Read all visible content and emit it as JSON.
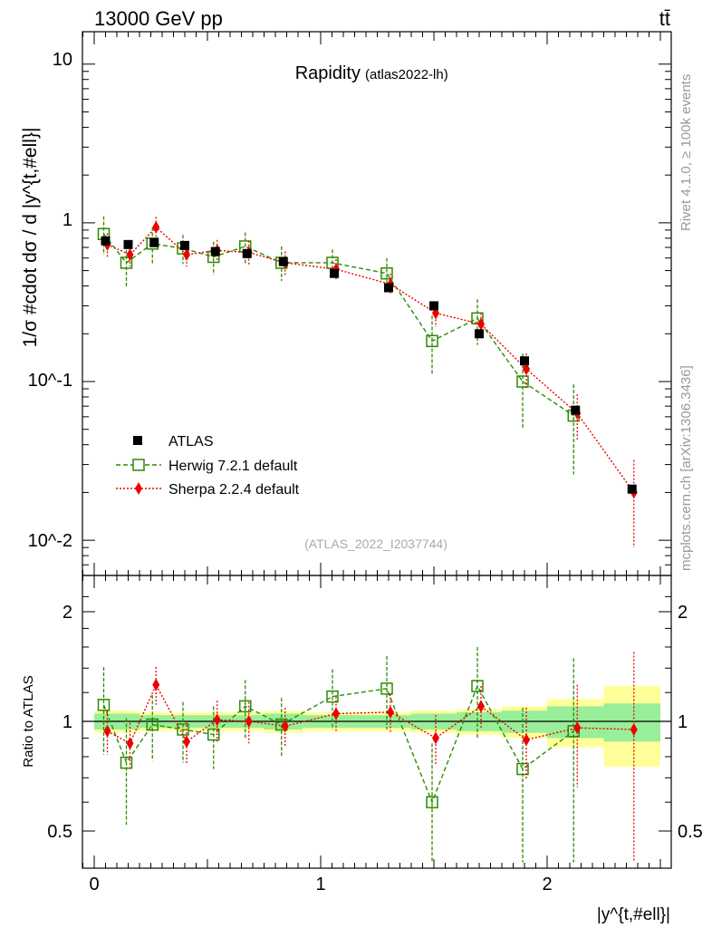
{
  "header": {
    "left": "13000 GeV pp",
    "right": "tt̄"
  },
  "side": {
    "right_top": "Rivet 4.1.0, ≥ 100k events",
    "right_bottom": "mcplots.cern.ch [arXiv:1306.3436]"
  },
  "chart_data": {
    "type": "scatter",
    "title": "Rapidity",
    "subtitle": "(atlas2022-lh)",
    "watermark": "(ATLAS_2022_I2037744)",
    "xlabel": "|y^{t,#ell}|",
    "ylabel": "1/σ #cdot dσ / d |y^{t,#ell}|",
    "ratio_ylabel": "Ratio to ATLAS",
    "xlim": [
      -0.1,
      2.55
    ],
    "ylim": [
      0.006,
      16
    ],
    "ratio_ylim": [
      0.4,
      2.5
    ],
    "yscale": "log",
    "x_ticks": [
      "0",
      "1",
      "2"
    ],
    "y_ticks": [
      "10^-2",
      "10^-1",
      "1",
      "10"
    ],
    "ratio_y_ticks": [
      "0.5",
      "1",
      "2"
    ],
    "bin_edges": [
      0,
      0.1,
      0.2,
      0.33,
      0.47,
      0.6,
      0.75,
      0.92,
      1.2,
      1.4,
      1.6,
      1.8,
      2.0,
      2.25,
      2.5
    ],
    "x": [
      0.05,
      0.15,
      0.265,
      0.4,
      0.535,
      0.675,
      0.835,
      1.06,
      1.3,
      1.5,
      1.7,
      1.9,
      2.125,
      2.375
    ],
    "legend": [
      "ATLAS",
      "Herwig 7.2.1 default",
      "Sherpa 2.2.4 default"
    ],
    "series": [
      {
        "name": "ATLAS",
        "color": "#000000",
        "values": [
          0.77,
          0.73,
          0.75,
          0.72,
          0.66,
          0.64,
          0.57,
          0.48,
          0.39,
          0.3,
          0.2,
          0.135,
          0.066,
          0.021
        ]
      },
      {
        "name": "Herwig 7.2.1 default",
        "color": "#2e8b00",
        "values": [
          0.85,
          0.56,
          0.74,
          0.69,
          0.61,
          0.71,
          0.56,
          0.56,
          0.48,
          0.18,
          0.25,
          0.1,
          0.061,
          null
        ],
        "err_up": [
          0.25,
          0.17,
          0.2,
          0.15,
          0.15,
          0.16,
          0.15,
          0.12,
          0.12,
          0.08,
          0.08,
          0.05,
          0.035,
          null
        ],
        "err_down": [
          0.22,
          0.17,
          0.2,
          0.14,
          0.14,
          0.16,
          0.13,
          0.1,
          0.1,
          0.07,
          0.08,
          0.05,
          0.035,
          null
        ]
      },
      {
        "name": "Sherpa 2.2.4 default",
        "color": "#ee0000",
        "values": [
          0.73,
          0.63,
          0.94,
          0.63,
          0.67,
          0.65,
          0.56,
          0.51,
          0.41,
          0.27,
          0.23,
          0.12,
          0.063,
          0.02
        ],
        "err_up": [
          0.13,
          0.11,
          0.15,
          0.11,
          0.11,
          0.12,
          0.1,
          0.08,
          0.07,
          0.05,
          0.04,
          0.03,
          0.02,
          0.012
        ],
        "err_down": [
          0.12,
          0.1,
          0.14,
          0.1,
          0.1,
          0.11,
          0.09,
          0.07,
          0.06,
          0.05,
          0.04,
          0.03,
          0.02,
          0.011
        ]
      }
    ],
    "ratio": {
      "herwig": [
        1.11,
        0.77,
        0.98,
        0.95,
        0.92,
        1.1,
        0.98,
        1.17,
        1.23,
        0.6,
        1.25,
        0.74,
        0.94,
        null
      ],
      "herwig_err": [
        0.3,
        0.25,
        0.2,
        0.18,
        0.18,
        0.2,
        0.18,
        0.22,
        0.28,
        0.27,
        0.35,
        0.35,
        0.55,
        null
      ],
      "sherpa": [
        0.94,
        0.87,
        1.26,
        0.88,
        1.01,
        1.0,
        0.97,
        1.05,
        1.06,
        0.9,
        1.1,
        0.89,
        0.96,
        0.95
      ],
      "sherpa_err": [
        0.13,
        0.12,
        0.15,
        0.12,
        0.13,
        0.13,
        0.12,
        0.12,
        0.13,
        0.14,
        0.15,
        0.2,
        0.3,
        0.6
      ],
      "band_inner": [
        0.05,
        0.05,
        0.04,
        0.04,
        0.04,
        0.04,
        0.05,
        0.04,
        0.04,
        0.05,
        0.06,
        0.07,
        0.1,
        0.12
      ],
      "band_outer": [
        0.07,
        0.07,
        0.06,
        0.06,
        0.06,
        0.06,
        0.07,
        0.06,
        0.06,
        0.07,
        0.08,
        0.1,
        0.15,
        0.25
      ]
    }
  }
}
